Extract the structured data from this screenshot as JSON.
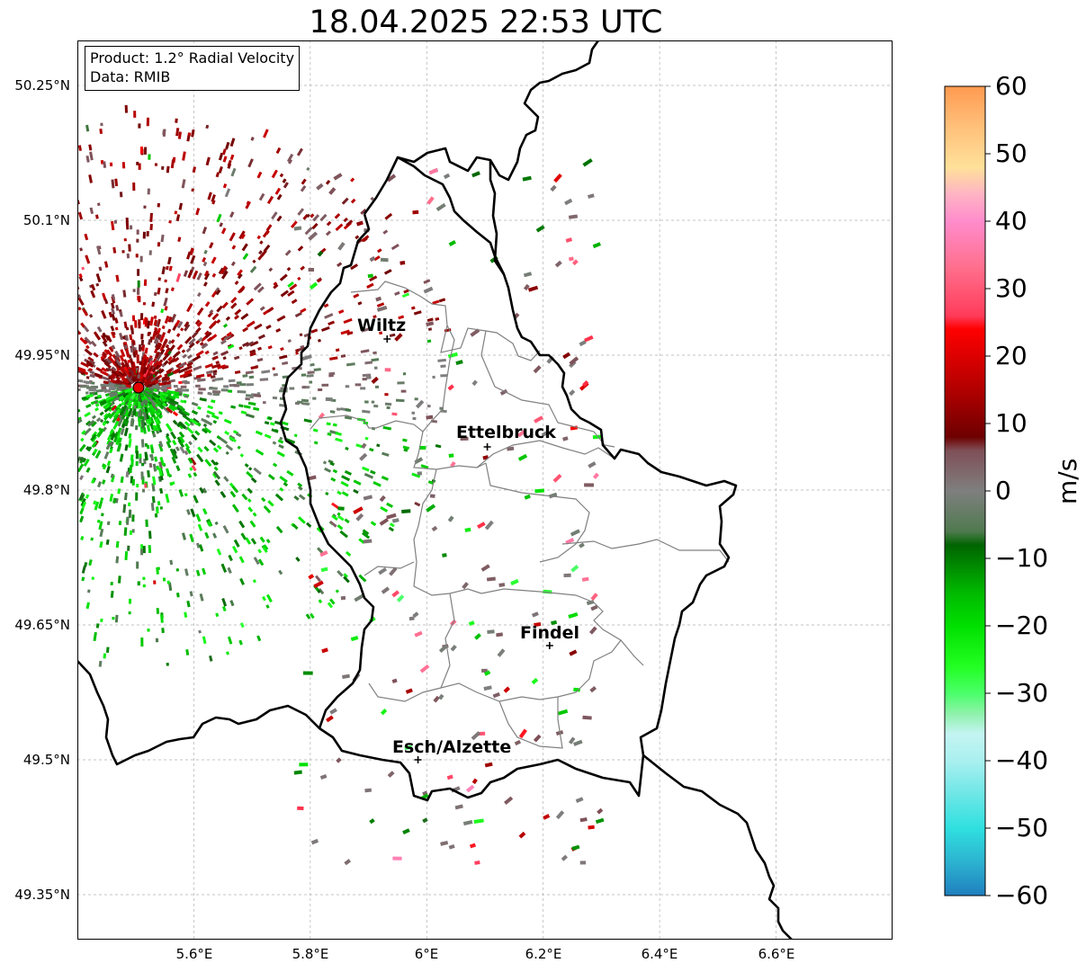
{
  "title": "18.04.2025 22:53 UTC",
  "info_box": {
    "product": "Product: 1.2° Radial Velocity",
    "data": "Data: RMIB"
  },
  "axes": {
    "lat_ticks": [
      "50.25°N",
      "50.1°N",
      "49.95°N",
      "49.8°N",
      "49.65°N",
      "49.5°N",
      "49.35°N"
    ],
    "lon_ticks": [
      "5.6°E",
      "5.8°E",
      "6°E",
      "6.2°E",
      "6.4°E",
      "6.6°E"
    ],
    "lat_values": [
      50.25,
      50.1,
      49.95,
      49.8,
      49.65,
      49.5,
      49.35
    ],
    "lon_values": [
      5.6,
      5.8,
      6.0,
      6.2,
      6.4,
      6.6
    ],
    "lon_range": [
      5.4,
      6.8
    ],
    "lat_range": [
      49.3,
      50.3
    ],
    "grid": true
  },
  "colorbar": {
    "unit": "m/s",
    "min": -60,
    "max": 60,
    "tick_labels": [
      "60",
      "50",
      "40",
      "30",
      "20",
      "10",
      "0",
      "−10",
      "−20",
      "−30",
      "−40",
      "−50",
      "−60"
    ],
    "stops": [
      {
        "v": -60,
        "c": "#1f7fbf"
      },
      {
        "v": -55,
        "c": "#2cb3d0"
      },
      {
        "v": -50,
        "c": "#2fe0e0"
      },
      {
        "v": -45,
        "c": "#6ee6e6"
      },
      {
        "v": -40,
        "c": "#aaf0f0"
      },
      {
        "v": -36,
        "c": "#c4f4f2"
      },
      {
        "v": -33,
        "c": "#8ef2aa"
      },
      {
        "v": -30,
        "c": "#4aff6a"
      },
      {
        "v": -26,
        "c": "#22ff22"
      },
      {
        "v": -20,
        "c": "#00e000"
      },
      {
        "v": -15,
        "c": "#00b800"
      },
      {
        "v": -8,
        "c": "#006400"
      },
      {
        "v": -6,
        "c": "#4f7a4f"
      },
      {
        "v": 0,
        "c": "#7f7f7f"
      },
      {
        "v": 6,
        "c": "#7f4f57"
      },
      {
        "v": 8,
        "c": "#6e0000"
      },
      {
        "v": 15,
        "c": "#b20000"
      },
      {
        "v": 24,
        "c": "#ff0000"
      },
      {
        "v": 26,
        "c": "#ff3c5a"
      },
      {
        "v": 33,
        "c": "#ff6e8c"
      },
      {
        "v": 40,
        "c": "#ff8ccc"
      },
      {
        "v": 44,
        "c": "#ffb4c4"
      },
      {
        "v": 48,
        "c": "#ffe19a"
      },
      {
        "v": 54,
        "c": "#ffc07a"
      },
      {
        "v": 60,
        "c": "#ff9a50"
      }
    ]
  },
  "radar_site": {
    "lon": 5.505,
    "lat": 49.914
  },
  "cities": [
    {
      "name": "Wiltz",
      "lon": 5.932,
      "lat": 49.968
    },
    {
      "name": "Ettelbruck",
      "lon": 6.104,
      "lat": 49.848
    },
    {
      "name": "Findel",
      "lon": 6.211,
      "lat": 49.627
    },
    {
      "name": "Esch/Alzette",
      "lon": 5.985,
      "lat": 49.5
    }
  ],
  "colors": {
    "border": "#000000",
    "district_lines": "#808080",
    "grid": "#b0b0b0",
    "radar_marker": "#e00000"
  }
}
